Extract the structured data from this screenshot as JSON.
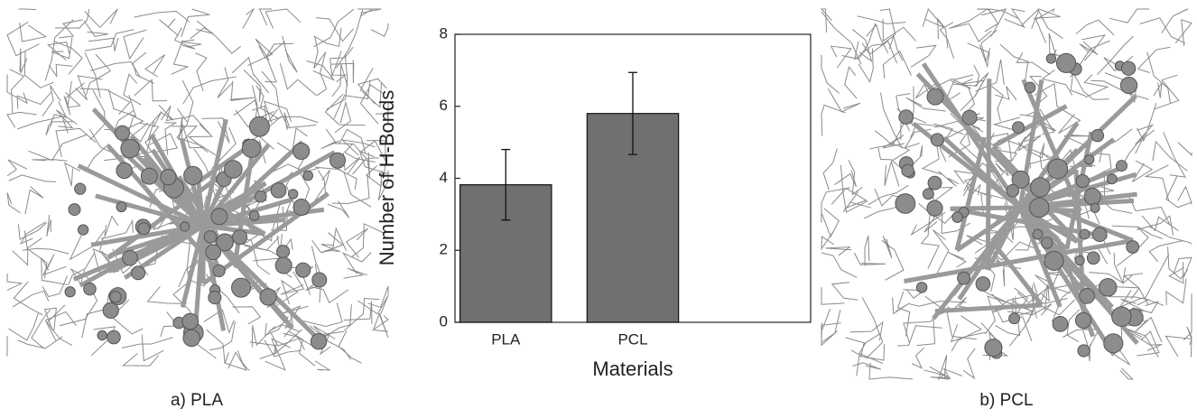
{
  "chart_data": {
    "type": "bar",
    "categories": [
      "PLA",
      "PCL"
    ],
    "values": [
      3.82,
      5.8
    ],
    "errors": [
      0.98,
      1.14
    ],
    "color": "#707070",
    "xlabel": "Materials",
    "ylabel": "Number of H-Bonds",
    "ylim": [
      0,
      8
    ],
    "yticks": [
      0,
      2,
      4,
      6,
      8
    ]
  },
  "panels": [
    {
      "caption": "a) PLA"
    },
    {
      "caption": "b) PCL"
    }
  ]
}
